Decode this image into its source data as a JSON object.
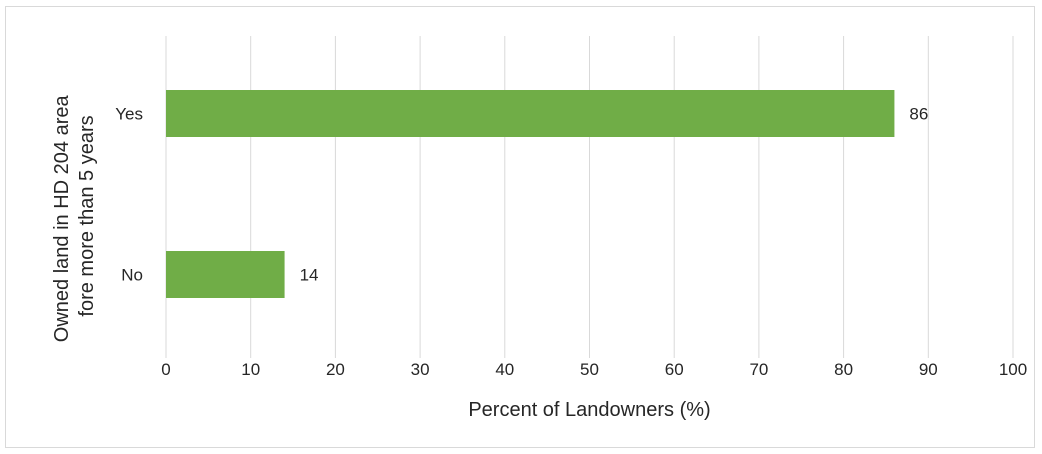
{
  "chart_data": {
    "type": "bar",
    "orientation": "horizontal",
    "categories": [
      "Yes",
      "No"
    ],
    "values": [
      86,
      14
    ],
    "data_labels": [
      "86",
      "14"
    ],
    "xlabel": "Percent of Landowners (%)",
    "ylabel_lines": [
      "Owned land in HD 204 area",
      "fore more than 5 years"
    ],
    "xlim": [
      0,
      100
    ],
    "xticks": [
      0,
      10,
      20,
      30,
      40,
      50,
      60,
      70,
      80,
      90,
      100
    ],
    "grid": "vertical",
    "legend": "none",
    "bar_color": "#70ad47"
  }
}
